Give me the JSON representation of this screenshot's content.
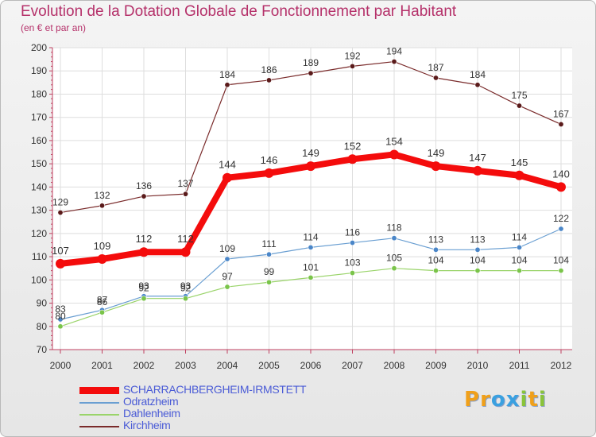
{
  "chart_data": {
    "type": "line",
    "title": "Evolution de la Dotation Globale de Fonctionnement par Habitant",
    "subtitle": "(en € et par an)",
    "xlabel": "",
    "ylabel": "",
    "ylim": [
      70,
      200
    ],
    "yticks": [
      70,
      80,
      90,
      100,
      110,
      120,
      130,
      140,
      150,
      160,
      170,
      180,
      190,
      200
    ],
    "grid": true,
    "legend_position": "bottom-left",
    "x": [
      "2000",
      "2001",
      "2002",
      "2003",
      "2004",
      "2005",
      "2006",
      "2007",
      "2008",
      "2009",
      "2010",
      "2011",
      "2012"
    ],
    "series": [
      {
        "name": "Kirchheim",
        "color": "#7a2b2b",
        "values": [
          129,
          132,
          136,
          137,
          184,
          186,
          189,
          192,
          194,
          187,
          184,
          175,
          167
        ]
      },
      {
        "name": "Odratzheim",
        "color": "#6a9fd2",
        "values": [
          83,
          87,
          93,
          93,
          109,
          111,
          114,
          116,
          118,
          113,
          113,
          114,
          122
        ]
      },
      {
        "name": "Dahlenheim",
        "color": "#9ad46a",
        "values": [
          80,
          86,
          92,
          92,
          97,
          99,
          101,
          103,
          105,
          104,
          104,
          104,
          104
        ]
      },
      {
        "name": "SCHARRACHBERGHEIM-IRMSTETT",
        "color": "#f40c0c",
        "values": [
          107,
          109,
          112,
          112,
          144,
          146,
          149,
          152,
          154,
          149,
          147,
          145,
          140
        ]
      }
    ],
    "legend_order": [
      "SCHARRACHBERGHEIM-IRMSTETT",
      "Odratzheim",
      "Dahlenheim",
      "Kirchheim"
    ]
  },
  "logo": {
    "text": "Proxiti",
    "colors": {
      "P": "#f0a01a",
      "r": "#f0a01a",
      "o": "#3aa0e0",
      "x": "#3aa0e0",
      "i": "#8ac43a",
      "t": "#f0a01a",
      "i2": "#8ac43a"
    }
  }
}
